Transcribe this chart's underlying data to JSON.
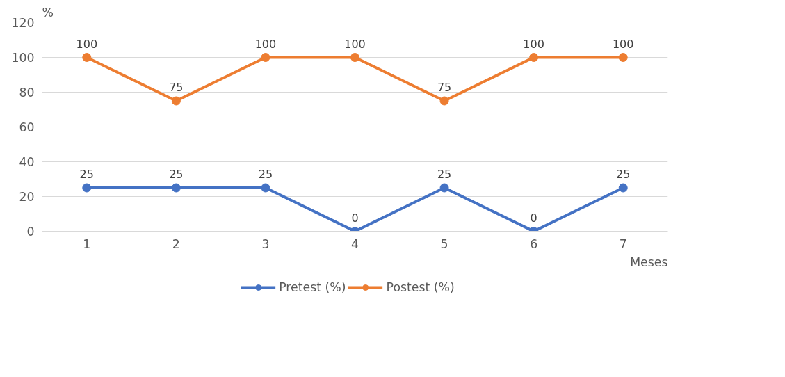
{
  "chart_data": {
    "type": "line",
    "xlabel": "Meses",
    "ylabel": "%",
    "categories": [
      "1",
      "2",
      "3",
      "4",
      "5",
      "6",
      "7"
    ],
    "series": [
      {
        "name": "Pretest (%)",
        "color": "#4472c4",
        "values": [
          25,
          25,
          25,
          0,
          25,
          0,
          25
        ]
      },
      {
        "name": "Postest (%)",
        "color": "#ed7d31",
        "values": [
          100,
          75,
          100,
          100,
          75,
          100,
          100
        ]
      }
    ],
    "ylim": [
      0,
      120
    ],
    "yticks": [
      0,
      20,
      40,
      60,
      80,
      100,
      120
    ],
    "grid": "y",
    "legend": "bottom",
    "marker": "circle",
    "line_style": "solid",
    "data_labels": true
  }
}
